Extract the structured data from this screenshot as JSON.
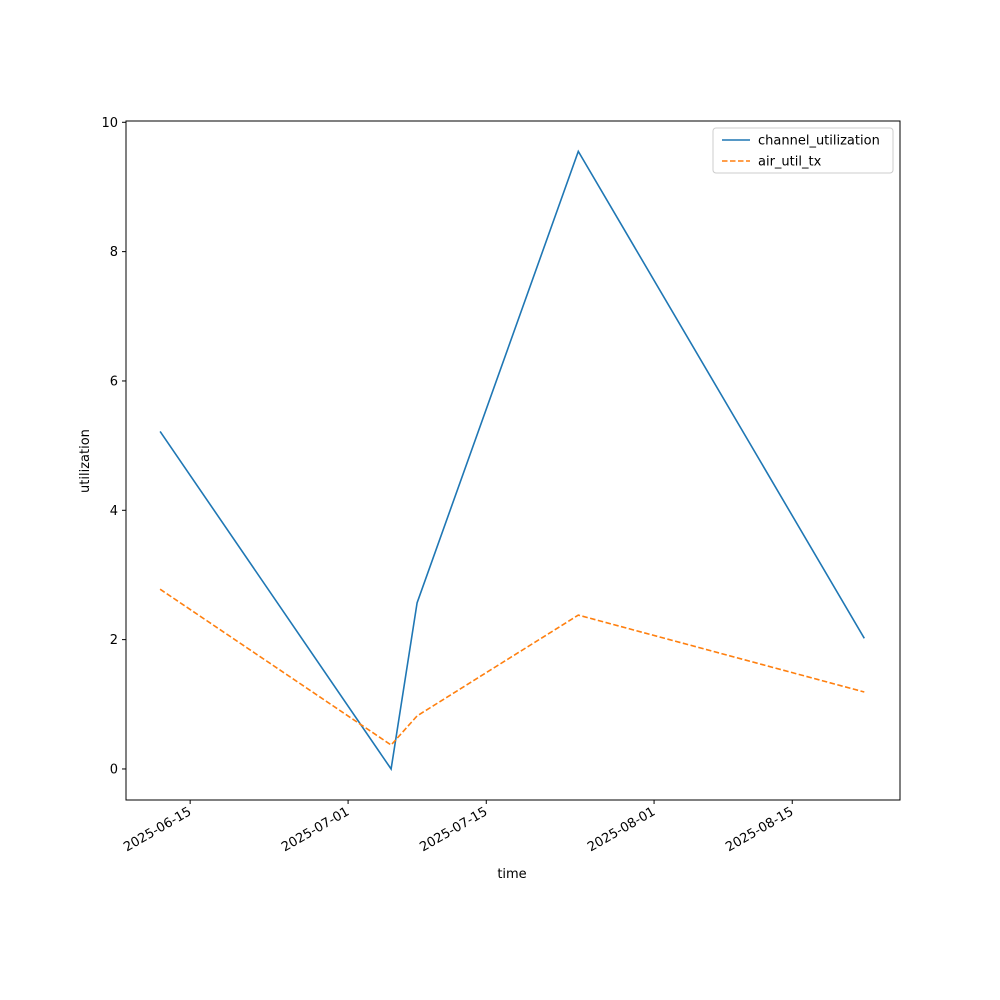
{
  "chart_data": {
    "type": "line",
    "title": "",
    "xlabel": "time",
    "ylabel": "utilization",
    "x": [
      "2025-06-11T23:00",
      "2025-07-05T08:30",
      "2025-07-07T23:50",
      "2025-07-24T07:45",
      "2025-08-22T07:15"
    ],
    "series": [
      {
        "name": "channel_utilization",
        "values": [
          5.22,
          0.0,
          2.57,
          9.55,
          2.02
        ],
        "color": "#1f77b4",
        "style": "solid"
      },
      {
        "name": "air_util_tx",
        "values": [
          2.78,
          0.37,
          0.82,
          2.38,
          1.19
        ],
        "color": "#ff7f0e",
        "style": "dashed"
      }
    ],
    "xlim": [
      "2025-06-08T12:00",
      "2025-08-25T22:00"
    ],
    "ylim": [
      -0.48,
      10.02
    ],
    "xticks": [
      "2025-06-15",
      "2025-07-01",
      "2025-07-15",
      "2025-08-01",
      "2025-08-15"
    ],
    "yticks": [
      0,
      2,
      4,
      6,
      8,
      10
    ],
    "grid": false,
    "legend": "top-right"
  }
}
